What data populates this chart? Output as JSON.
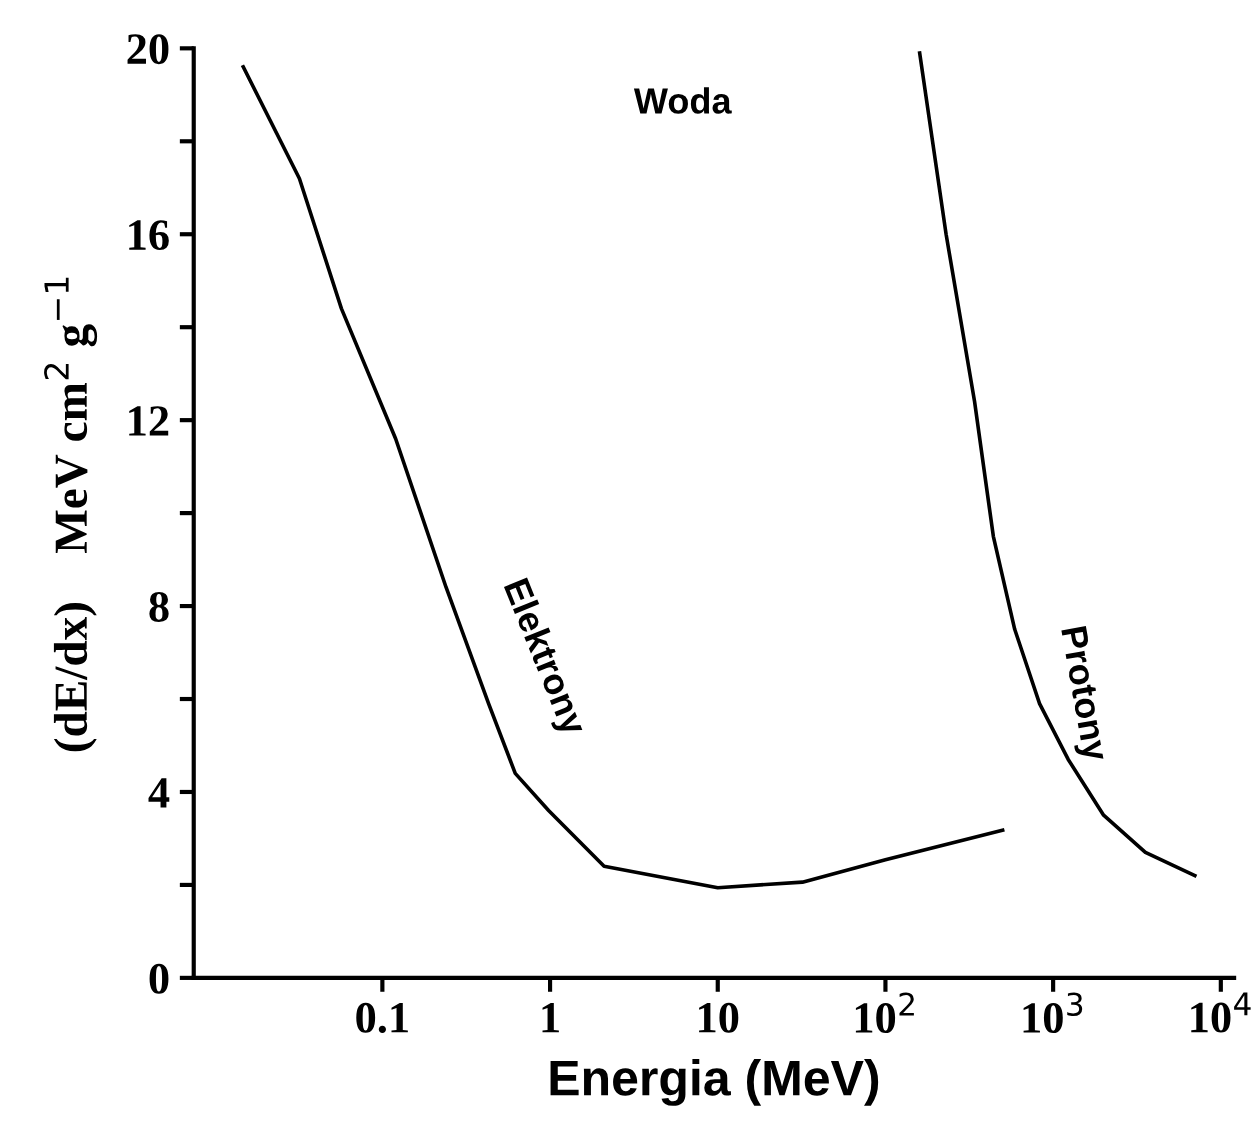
{
  "chart_data": {
    "type": "line",
    "xlabel": "Energia (MeV)",
    "ylabel": "(dE/dx)    MeV cm$^{2}$ g$^{−1}$",
    "annotations": [
      "Woda"
    ],
    "log": "x",
    "xlim": [
      0.0075,
      12000
    ],
    "xticks": [
      0.1,
      1,
      10,
      {
        "value": 100,
        "label": "10$^{2}$"
      },
      {
        "value": 1000,
        "label": "10$^{3}$"
      },
      {
        "value": 10000,
        "label": "10$^{4}$"
      }
    ],
    "ylim": [
      0,
      20
    ],
    "yticks": [
      0,
      {
        "value": 2,
        "label": null
      },
      4,
      {
        "value": 6,
        "label": null
      },
      8,
      {
        "value": 10,
        "label": null
      },
      12,
      {
        "value": 14,
        "label": null
      },
      16,
      {
        "value": 18,
        "label": null
      },
      20
    ],
    "grid": false,
    "legend": false,
    "series": [
      {
        "name": "Elektrony",
        "color": "#000000",
        "x": [
          0.0148,
          0.032,
          0.057,
          0.12,
          0.24,
          0.43,
          0.62,
          0.98,
          2.1,
          10,
          32,
          100,
          500
        ],
        "values": [
          19.6,
          17.2,
          14.4,
          11.6,
          8.4,
          5.9,
          4.4,
          3.6,
          2.4,
          1.94,
          2.06,
          2.54,
          3.18
        ]
      },
      {
        "name": "Protony",
        "color": "#000000",
        "x": [
          160,
          230,
          340,
          440,
          590,
          830,
          1230,
          2000,
          3550,
          7000
        ],
        "values": [
          19.9,
          16.0,
          12.4,
          9.5,
          7.5,
          5.9,
          4.7,
          3.5,
          2.7,
          2.2
        ]
      }
    ]
  }
}
